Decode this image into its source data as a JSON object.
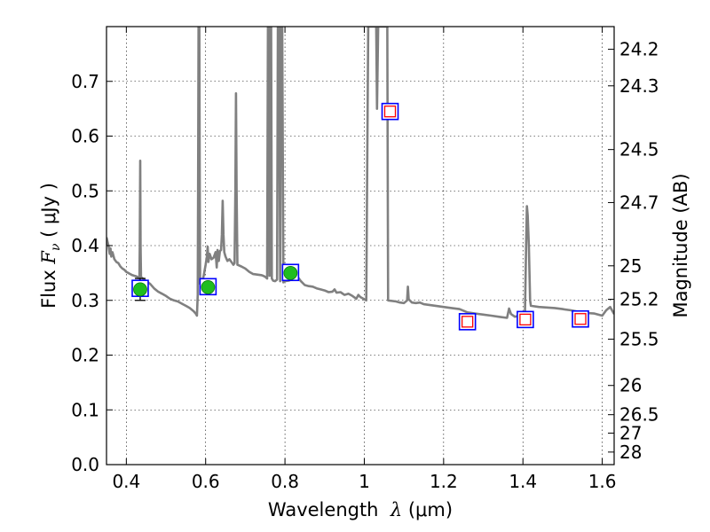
{
  "chart_data": {
    "type": "line",
    "xlabel": {
      "prefix": "Wavelength  ",
      "symbol": "λ",
      "units": " (μm)"
    },
    "ylabel": {
      "prefix": "Flux  ",
      "symbol": "F",
      "subscript": "ν",
      "units": "  ( μJy )"
    },
    "ylabel_right": "Magnitude (AB)",
    "xlim": [
      0.35,
      1.63
    ],
    "ylim": [
      0.0,
      0.8
    ],
    "grid": true,
    "x_ticks": [
      {
        "value": 0.4,
        "label": "0.4"
      },
      {
        "value": 0.6,
        "label": "0.6"
      },
      {
        "value": 0.8,
        "label": "0.8"
      },
      {
        "value": 1.0,
        "label": "1"
      },
      {
        "value": 1.2,
        "label": "1.2"
      },
      {
        "value": 1.4,
        "label": "1.4"
      },
      {
        "value": 1.6,
        "label": "1.6"
      }
    ],
    "y_ticks": [
      {
        "value": 0.0,
        "label": "0.0"
      },
      {
        "value": 0.1,
        "label": "0.1"
      },
      {
        "value": 0.2,
        "label": "0.2"
      },
      {
        "value": 0.3,
        "label": "0.3"
      },
      {
        "value": 0.4,
        "label": "0.4"
      },
      {
        "value": 0.5,
        "label": "0.5"
      },
      {
        "value": 0.6,
        "label": "0.6"
      },
      {
        "value": 0.7,
        "label": "0.7"
      }
    ],
    "right_ticks": [
      {
        "mag": 24.2,
        "label": "24.2"
      },
      {
        "mag": 24.3,
        "label": "24.3"
      },
      {
        "mag": 24.5,
        "label": "24.5"
      },
      {
        "mag": 24.7,
        "label": "24.7"
      },
      {
        "mag": 25,
        "label": "25"
      },
      {
        "mag": 25.2,
        "label": "25.2"
      },
      {
        "mag": 25.5,
        "label": "25.5"
      },
      {
        "mag": 26,
        "label": "26"
      },
      {
        "mag": 26.5,
        "label": "26.5"
      },
      {
        "mag": 27,
        "label": "27"
      },
      {
        "mag": 28,
        "label": "28"
      }
    ],
    "model_spectrum": {
      "color": "#808080",
      "points": [
        [
          0.35,
          0.415
        ],
        [
          0.355,
          0.4
        ],
        [
          0.358,
          0.385
        ],
        [
          0.36,
          0.395
        ],
        [
          0.362,
          0.38
        ],
        [
          0.365,
          0.388
        ],
        [
          0.37,
          0.375
        ],
        [
          0.375,
          0.37
        ],
        [
          0.38,
          0.368
        ],
        [
          0.385,
          0.362
        ],
        [
          0.39,
          0.358
        ],
        [
          0.395,
          0.356
        ],
        [
          0.4,
          0.352
        ],
        [
          0.405,
          0.35
        ],
        [
          0.41,
          0.348
        ],
        [
          0.415,
          0.346
        ],
        [
          0.42,
          0.345
        ],
        [
          0.425,
          0.344
        ],
        [
          0.43,
          0.342
        ],
        [
          0.433,
          0.34
        ],
        [
          0.434,
          0.4
        ],
        [
          0.435,
          0.555
        ],
        [
          0.436,
          0.4
        ],
        [
          0.437,
          0.342
        ],
        [
          0.44,
          0.341
        ],
        [
          0.45,
          0.335
        ],
        [
          0.46,
          0.33
        ],
        [
          0.47,
          0.322
        ],
        [
          0.48,
          0.316
        ],
        [
          0.49,
          0.312
        ],
        [
          0.5,
          0.308
        ],
        [
          0.51,
          0.303
        ],
        [
          0.52,
          0.3
        ],
        [
          0.53,
          0.298
        ],
        [
          0.54,
          0.294
        ],
        [
          0.55,
          0.29
        ],
        [
          0.56,
          0.286
        ],
        [
          0.57,
          0.28
        ],
        [
          0.575,
          0.276
        ],
        [
          0.578,
          0.272
        ],
        [
          0.58,
          0.31
        ],
        [
          0.581,
          0.5
        ],
        [
          0.582,
          0.8
        ],
        [
          0.584,
          0.8
        ],
        [
          0.585,
          0.55
        ],
        [
          0.586,
          0.33
        ],
        [
          0.59,
          0.33
        ],
        [
          0.595,
          0.345
        ],
        [
          0.6,
          0.365
        ],
        [
          0.603,
          0.38
        ],
        [
          0.605,
          0.398
        ],
        [
          0.607,
          0.37
        ],
        [
          0.61,
          0.385
        ],
        [
          0.615,
          0.375
        ],
        [
          0.62,
          0.378
        ],
        [
          0.625,
          0.388
        ],
        [
          0.628,
          0.36
        ],
        [
          0.63,
          0.392
        ],
        [
          0.633,
          0.372
        ],
        [
          0.636,
          0.39
        ],
        [
          0.639,
          0.392
        ],
        [
          0.641,
          0.42
        ],
        [
          0.643,
          0.482
        ],
        [
          0.645,
          0.42
        ],
        [
          0.647,
          0.388
        ],
        [
          0.65,
          0.38
        ],
        [
          0.655,
          0.372
        ],
        [
          0.66,
          0.375
        ],
        [
          0.665,
          0.37
        ],
        [
          0.67,
          0.365
        ],
        [
          0.673,
          0.368
        ],
        [
          0.675,
          0.5
        ],
        [
          0.6765,
          0.678
        ],
        [
          0.678,
          0.5
        ],
        [
          0.68,
          0.365
        ],
        [
          0.69,
          0.362
        ],
        [
          0.7,
          0.358
        ],
        [
          0.71,
          0.352
        ],
        [
          0.72,
          0.348
        ],
        [
          0.73,
          0.347
        ],
        [
          0.74,
          0.346
        ],
        [
          0.745,
          0.345
        ],
        [
          0.75,
          0.343
        ],
        [
          0.755,
          0.34
        ],
        [
          0.757,
          0.8
        ],
        [
          0.759,
          0.8
        ],
        [
          0.761,
          0.345
        ],
        [
          0.763,
          0.8
        ],
        [
          0.765,
          0.8
        ],
        [
          0.767,
          0.34
        ],
        [
          0.77,
          0.336
        ],
        [
          0.775,
          0.335
        ],
        [
          0.78,
          0.338
        ],
        [
          0.782,
          0.8
        ],
        [
          0.785,
          0.8
        ],
        [
          0.788,
          0.335
        ],
        [
          0.79,
          0.8
        ],
        [
          0.793,
          0.8
        ],
        [
          0.796,
          0.333
        ],
        [
          0.8,
          0.335
        ],
        [
          0.81,
          0.336
        ],
        [
          0.82,
          0.34
        ],
        [
          0.83,
          0.345
        ],
        [
          0.84,
          0.335
        ],
        [
          0.85,
          0.328
        ],
        [
          0.86,
          0.326
        ],
        [
          0.87,
          0.325
        ],
        [
          0.88,
          0.322
        ],
        [
          0.89,
          0.32
        ],
        [
          0.9,
          0.318
        ],
        [
          0.91,
          0.315
        ],
        [
          0.92,
          0.316
        ],
        [
          0.925,
          0.32
        ],
        [
          0.93,
          0.314
        ],
        [
          0.94,
          0.315
        ],
        [
          0.95,
          0.31
        ],
        [
          0.96,
          0.312
        ],
        [
          0.97,
          0.308
        ],
        [
          0.98,
          0.303
        ],
        [
          0.985,
          0.31
        ],
        [
          0.99,
          0.306
        ],
        [
          1.0,
          0.302
        ],
        [
          1.005,
          0.3
        ],
        [
          1.01,
          0.8
        ],
        [
          1.03,
          0.8
        ],
        [
          1.032,
          0.65
        ],
        [
          1.035,
          0.8
        ],
        [
          1.058,
          0.8
        ],
        [
          1.06,
          0.3
        ],
        [
          1.08,
          0.298
        ],
        [
          1.09,
          0.296
        ],
        [
          1.1,
          0.295
        ],
        [
          1.108,
          0.3
        ],
        [
          1.11,
          0.325
        ],
        [
          1.112,
          0.302
        ],
        [
          1.12,
          0.296
        ],
        [
          1.13,
          0.295
        ],
        [
          1.14,
          0.296
        ],
        [
          1.15,
          0.293
        ],
        [
          1.16,
          0.292
        ],
        [
          1.18,
          0.29
        ],
        [
          1.2,
          0.288
        ],
        [
          1.22,
          0.286
        ],
        [
          1.24,
          0.284
        ],
        [
          1.26,
          0.278
        ],
        [
          1.28,
          0.276
        ],
        [
          1.3,
          0.274
        ],
        [
          1.32,
          0.272
        ],
        [
          1.34,
          0.27
        ],
        [
          1.36,
          0.268
        ],
        [
          1.365,
          0.285
        ],
        [
          1.37,
          0.275
        ],
        [
          1.38,
          0.27
        ],
        [
          1.39,
          0.272
        ],
        [
          1.4,
          0.272
        ],
        [
          1.405,
          0.275
        ],
        [
          1.408,
          0.4
        ],
        [
          1.41,
          0.472
        ],
        [
          1.412,
          0.455
        ],
        [
          1.415,
          0.4
        ],
        [
          1.418,
          0.3
        ],
        [
          1.42,
          0.29
        ],
        [
          1.44,
          0.288
        ],
        [
          1.46,
          0.287
        ],
        [
          1.48,
          0.286
        ],
        [
          1.5,
          0.284
        ],
        [
          1.52,
          0.282
        ],
        [
          1.54,
          0.279
        ],
        [
          1.56,
          0.277
        ],
        [
          1.58,
          0.276
        ],
        [
          1.6,
          0.272
        ],
        [
          1.61,
          0.282
        ],
        [
          1.62,
          0.288
        ],
        [
          1.63,
          0.275
        ]
      ]
    },
    "observed_points": {
      "color": "#1fbd1f",
      "points": [
        {
          "x": 0.435,
          "y": 0.32,
          "yerr": 0.02
        },
        {
          "x": 0.606,
          "y": 0.324,
          "yerr": 0.008
        },
        {
          "x": 0.814,
          "y": 0.35,
          "yerr": 0.006
        }
      ]
    },
    "model_photometry_outer": {
      "color": "#0000ff",
      "points": [
        {
          "x": 0.435,
          "y": 0.322
        },
        {
          "x": 0.606,
          "y": 0.325
        },
        {
          "x": 0.814,
          "y": 0.351
        },
        {
          "x": 1.065,
          "y": 0.645
        },
        {
          "x": 1.26,
          "y": 0.261
        },
        {
          "x": 1.406,
          "y": 0.265
        },
        {
          "x": 1.545,
          "y": 0.266
        }
      ]
    },
    "model_photometry_inner": {
      "color": "#ff0000",
      "points": [
        {
          "x": 1.065,
          "y": 0.645
        },
        {
          "x": 1.26,
          "y": 0.261
        },
        {
          "x": 1.406,
          "y": 0.265
        },
        {
          "x": 1.545,
          "y": 0.266
        }
      ]
    }
  }
}
